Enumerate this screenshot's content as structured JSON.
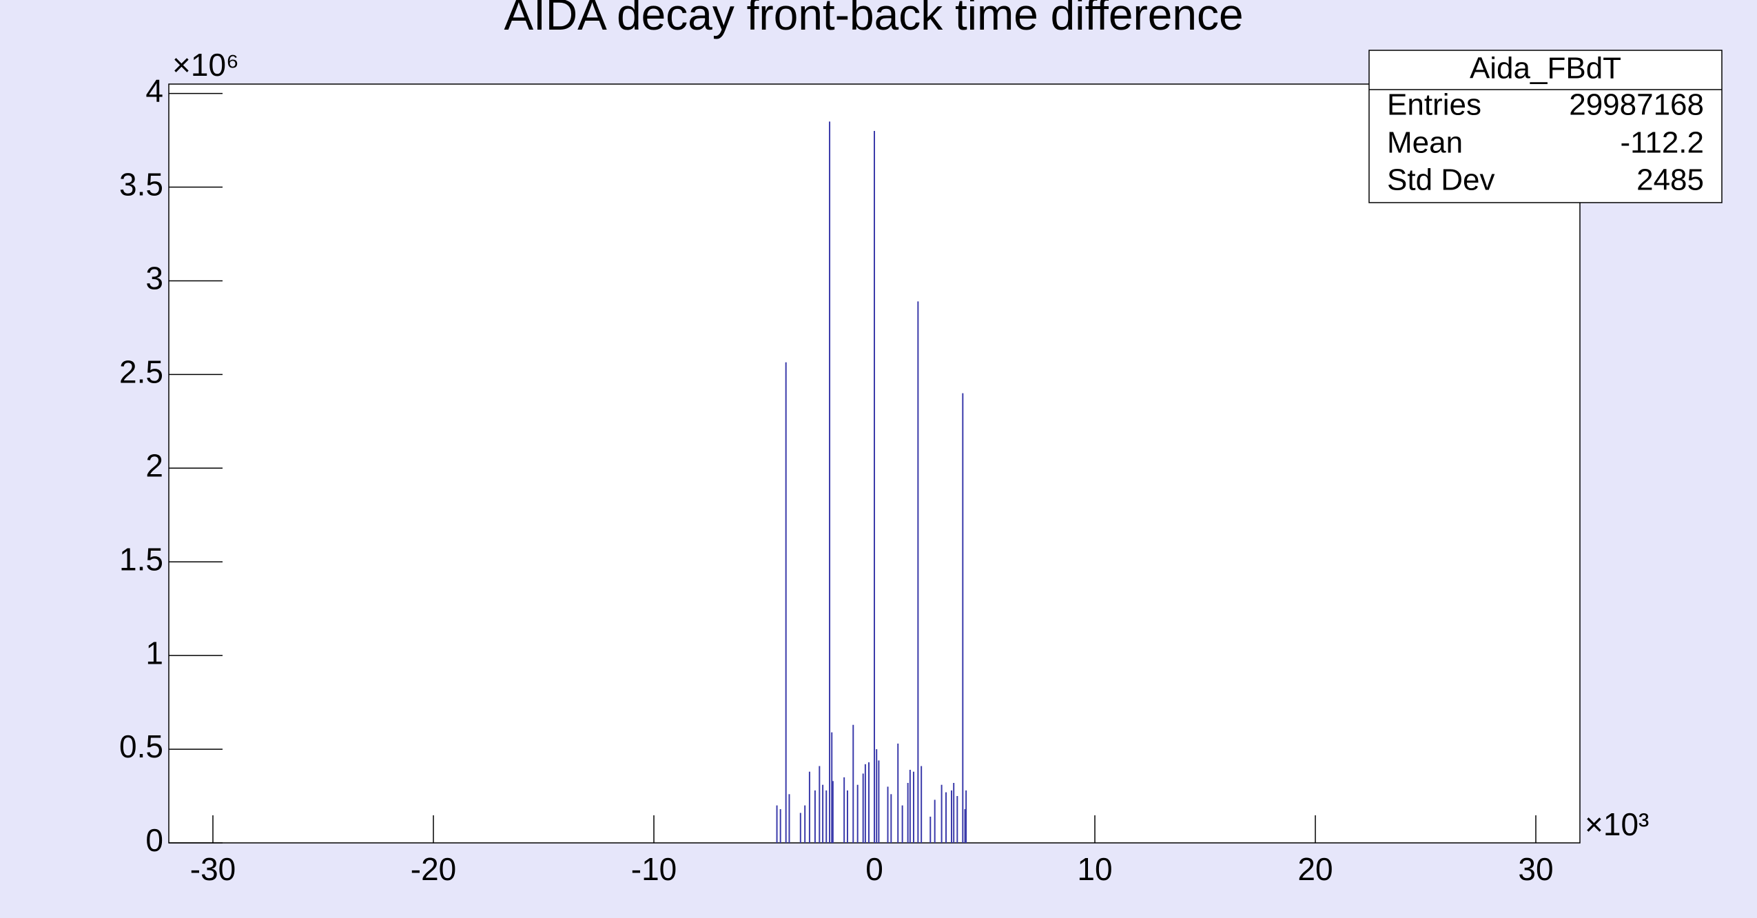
{
  "chart_data": {
    "type": "bar",
    "title": "AIDA decay front-back time difference",
    "x": [
      -4.42,
      -4.26,
      -4.01,
      -3.86,
      -3.35,
      -3.15,
      -2.94,
      -2.69,
      -2.49,
      -2.34,
      -2.18,
      -2.03,
      -1.93,
      -1.88,
      -1.37,
      -1.22,
      -0.96,
      -0.76,
      -0.51,
      -0.41,
      -0.25,
      0,
      0.1,
      0.2,
      0.61,
      0.76,
      1.07,
      1.27,
      1.52,
      1.62,
      1.78,
      1.98,
      2.13,
      2.54,
      2.74,
      3.05,
      3.25,
      3.5,
      3.6,
      3.76,
      4.01,
      4.11,
      4.16
    ],
    "values": [
      0.2,
      0.18,
      2.565,
      0.26,
      0.16,
      0.2,
      0.38,
      0.28,
      0.41,
      0.31,
      0.28,
      3.85,
      0.59,
      0.33,
      0.35,
      0.28,
      0.63,
      0.31,
      0.37,
      0.42,
      0.43,
      3.8,
      0.5,
      0.44,
      0.3,
      0.26,
      0.53,
      0.2,
      0.32,
      0.39,
      0.38,
      2.89,
      0.41,
      0.14,
      0.23,
      0.31,
      0.27,
      0.28,
      0.32,
      0.25,
      2.4,
      0.18,
      0.28
    ],
    "color": "#3a3aaa",
    "xlim": [
      -32,
      32
    ],
    "ylim": [
      0,
      4.05
    ],
    "xticks": [
      -30,
      -20,
      -10,
      0,
      10,
      20,
      30
    ],
    "yticks": [
      0,
      0.5,
      1,
      1.5,
      2,
      2.5,
      3,
      3.5,
      4
    ],
    "x_multiplier": "×10³",
    "y_multiplier": "×10⁶",
    "stats": {
      "title": "Aida_FBdT",
      "rows": [
        [
          "Entries",
          29987168
        ],
        [
          "Mean",
          -112.2
        ],
        [
          "Std Dev",
          2485
        ]
      ]
    }
  }
}
